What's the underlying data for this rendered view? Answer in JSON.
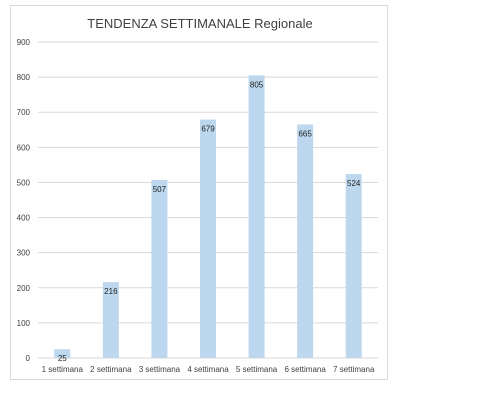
{
  "chart_data": {
    "type": "bar",
    "title": "TENDENZA SETTIMANALE Regionale",
    "xlabel": "",
    "ylabel": "",
    "categories": [
      "1 settimana",
      "2 settimana",
      "3 settimana",
      "4 settimana",
      "5 settimana",
      "6 settimana",
      "7 settimana"
    ],
    "values": [
      25,
      216,
      507,
      679,
      805,
      665,
      524
    ],
    "ylim": [
      0,
      900
    ],
    "yticks": [
      0,
      100,
      200,
      300,
      400,
      500,
      600,
      700,
      800,
      900
    ],
    "grid": true,
    "legend": "none",
    "bar_color": "#bdd7ee",
    "grid_color": "#d9d9d9"
  }
}
